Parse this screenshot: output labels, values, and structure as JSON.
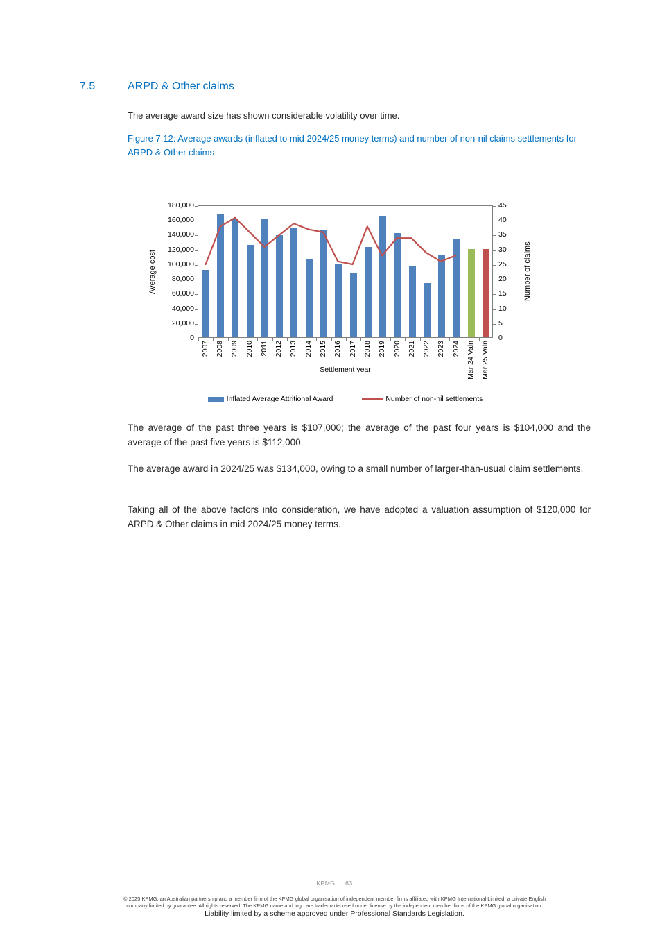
{
  "colors": {
    "accent_blue": "#0070C0",
    "body_text": "#262626"
  },
  "page": {
    "section_number": "7.5",
    "section_title": "ARPD & Other claims",
    "intro": "The average award size has shown considerable volatility over time.",
    "figure_caption": "Figure 7.12: Average awards (inflated to mid 2024/25 money terms) and number of non-nil claims settlements for ARPD & Other claims",
    "para1": "The average of the past three years is $107,000; the average of the past four years is $104,000 and the average of the past five years is $112,000.",
    "para2": "The average award in 2024/25 was $134,000, owing to a small number of larger-than-usual claim settlements.",
    "para3": "Taking all of the above factors into consideration, we have adopted a valuation assumption of $120,000 for ARPD & Other claims in mid 2024/25 money terms."
  },
  "chart_data": {
    "type": "bar",
    "title": "",
    "xlabel": "Settlement year",
    "categories": [
      "2007",
      "2008",
      "2009",
      "2010",
      "2011",
      "2012",
      "2013",
      "2014",
      "2015",
      "2016",
      "2017",
      "2018",
      "2019",
      "2020",
      "2021",
      "2022",
      "2023",
      "2024",
      "Mar 24 Valn",
      "Mar 25 Valn"
    ],
    "series": [
      {
        "name": "Inflated Average Attritional Award",
        "type": "bar",
        "axis": "left",
        "values": [
          91000,
          167000,
          160000,
          125000,
          161000,
          139000,
          148000,
          106000,
          145000,
          100000,
          87000,
          123000,
          165000,
          141000,
          96000,
          74000,
          111000,
          134000,
          120000,
          120000
        ]
      },
      {
        "name": "Number of non-nil settlements",
        "type": "line",
        "axis": "right",
        "values": [
          25,
          38,
          41,
          36,
          31,
          35,
          39,
          37,
          36,
          26,
          25,
          38,
          28,
          34,
          34,
          29,
          26,
          28,
          null,
          null
        ]
      }
    ],
    "left_axis": {
      "label": "Average cost",
      "min": 0,
      "max": 180000,
      "tick_step": 20000,
      "ticks": [
        "180,000",
        "160,000",
        "140,000",
        "120,000",
        "100,000",
        "80,000",
        "60,000",
        "40,000",
        "20,000",
        "0"
      ]
    },
    "right_axis": {
      "label": "Number of claims",
      "min": 0,
      "max": 45,
      "tick_step": 5,
      "ticks": [
        "45",
        "40",
        "35",
        "30",
        "25",
        "20",
        "15",
        "10",
        "5",
        "0"
      ]
    },
    "bar_color_default": "#4F81BD",
    "bar_color_overrides": {
      "18": "#9BBB59",
      "19": "#C0504D"
    },
    "legend": [
      {
        "label": "Inflated Average Attritional Award",
        "color": "#4F81BD",
        "marker": "rect"
      },
      {
        "label": "Number of non-nil settlements",
        "color": "#C0504D",
        "marker": "line"
      }
    ],
    "legend_position": "bottom",
    "grid": false
  },
  "footer": {
    "brand": "KPMG",
    "separator": "|",
    "page_number": "63",
    "copyright_line1": "© 2025 KPMG, an Australian partnership and a member firm of the KPMG global organisation of independent member firms affiliated with KPMG International Limited, a private English",
    "copyright_line2": "company limited by guarantee. All rights reserved. The KPMG name and logo are trademarks used under license by the independent member firms of the KPMG global organisation.",
    "liability": "Liability limited by a scheme approved under Professional Standards Legislation."
  }
}
